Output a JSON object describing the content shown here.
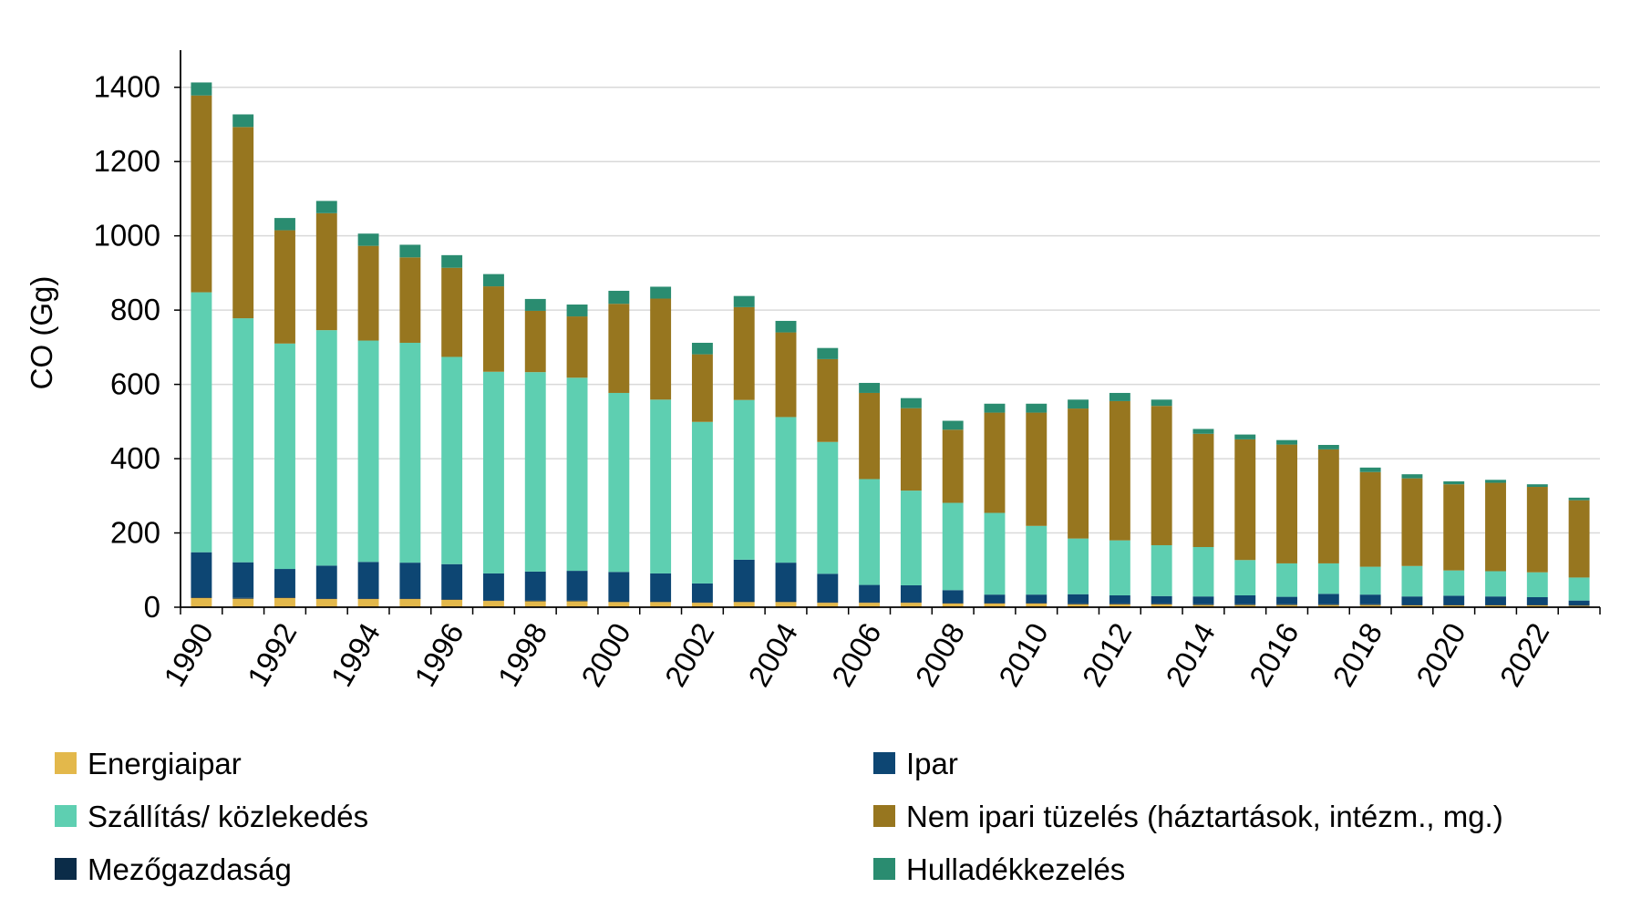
{
  "chart_data": {
    "type": "bar",
    "stacked": true,
    "ylabel": "CO (Gg)",
    "ylim": [
      0,
      1500
    ],
    "yticks": [
      0,
      200,
      400,
      600,
      800,
      1000,
      1200,
      1400
    ],
    "grid": true,
    "legend_position": "bottom",
    "categories": [
      "1990",
      "1991",
      "1992",
      "1993",
      "1994",
      "1995",
      "1996",
      "1997",
      "1998",
      "1999",
      "2000",
      "2001",
      "2002",
      "2003",
      "2004",
      "2005",
      "2006",
      "2007",
      "2008",
      "2009",
      "2010",
      "2011",
      "2012",
      "2013",
      "2014",
      "2015",
      "2016",
      "2017",
      "2018",
      "2019",
      "2020",
      "2021",
      "2022",
      "2023"
    ],
    "xticks": [
      "1990",
      "1992",
      "1994",
      "1996",
      "1998",
      "2000",
      "2002",
      "2004",
      "2006",
      "2008",
      "2010",
      "2012",
      "2014",
      "2016",
      "2018",
      "2020",
      "2022"
    ],
    "series": [
      {
        "name": "Energiaipar",
        "color": "#e3b84b",
        "values": [
          25,
          23,
          25,
          22,
          22,
          22,
          20,
          17,
          16,
          16,
          14,
          14,
          12,
          14,
          14,
          12,
          12,
          12,
          10,
          10,
          10,
          8,
          8,
          8,
          6,
          6,
          6,
          6,
          6,
          5,
          5,
          5,
          5,
          4
        ]
      },
      {
        "name": "Mezőgazdaság",
        "color": "#0b2c48",
        "values": [
          2,
          2,
          2,
          2,
          2,
          2,
          2,
          2,
          2,
          2,
          2,
          2,
          2,
          2,
          2,
          2,
          2,
          2,
          2,
          2,
          2,
          2,
          2,
          2,
          2,
          2,
          2,
          2,
          2,
          2,
          2,
          2,
          2,
          2
        ]
      },
      {
        "name": "Ipar",
        "color": "#0d4673",
        "values": [
          121,
          96,
          76,
          88,
          98,
          96,
          94,
          72,
          78,
          80,
          79,
          75,
          50,
          112,
          104,
          76,
          46,
          45,
          34,
          22,
          22,
          25,
          22,
          20,
          21,
          24,
          20,
          28,
          26,
          22,
          24,
          22,
          20,
          12
        ]
      },
      {
        "name": "Szállítás/ közlekedés",
        "color": "#5ecfb1",
        "values": [
          700,
          657,
          607,
          634,
          596,
          592,
          558,
          543,
          537,
          520,
          482,
          468,
          435,
          430,
          392,
          355,
          285,
          255,
          235,
          220,
          185,
          150,
          148,
          137,
          133,
          95,
          90,
          82,
          75,
          82,
          68,
          68,
          67,
          62
        ]
      },
      {
        "name": "Nem ipari tüzelés (háztartások, intézm., mg.)",
        "color": "#97761f",
        "values": [
          530,
          515,
          305,
          315,
          255,
          230,
          240,
          230,
          165,
          165,
          240,
          272,
          182,
          250,
          228,
          223,
          232,
          222,
          197,
          270,
          305,
          350,
          375,
          375,
          305,
          325,
          320,
          307,
          255,
          236,
          232,
          238,
          230,
          208
        ]
      },
      {
        "name": "Hulladékkezelés",
        "color": "#2a8c70",
        "values": [
          35,
          34,
          33,
          33,
          33,
          34,
          34,
          33,
          32,
          32,
          35,
          32,
          31,
          30,
          31,
          30,
          27,
          27,
          24,
          24,
          24,
          24,
          22,
          17,
          13,
          13,
          12,
          12,
          12,
          11,
          8,
          8,
          7,
          7
        ]
      }
    ]
  }
}
